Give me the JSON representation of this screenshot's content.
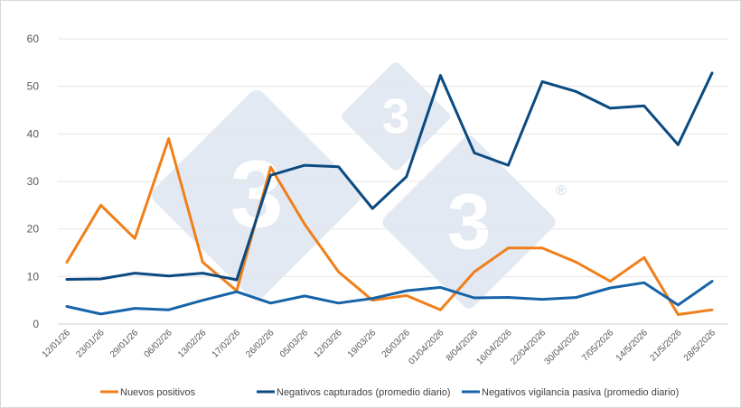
{
  "chart_data": {
    "type": "line",
    "categories": [
      "12/01/26",
      "23/01/26",
      "29/01/26",
      "06/02/26",
      "13/02/26",
      "17/02/26",
      "26/02/26",
      "05/03/26",
      "12/03/26",
      "19/03/26",
      "26/03/26",
      "01/04/2026",
      "8/04/2026",
      "16/04/2026",
      "22/04/2026",
      "30/04/2026",
      "7/05/2026",
      "14/5/2026",
      "21/5/2026",
      "28/5/2026"
    ],
    "ylim": [
      0,
      60
    ],
    "yticks": [
      0,
      10,
      20,
      30,
      40,
      50,
      60
    ],
    "grid": true,
    "legend_position": "bottom",
    "series": [
      {
        "name": "Nuevos positivos",
        "color": "#F07F1A",
        "values": [
          13,
          25,
          18,
          39,
          13,
          7,
          33,
          21,
          11,
          5,
          6,
          3,
          11,
          16,
          16,
          13,
          9,
          14,
          2,
          3
        ]
      },
      {
        "name": "Negativos capturados (promedio diario)",
        "color": "#0B4A80",
        "values": [
          9.4,
          9.5,
          10.7,
          10.1,
          10.7,
          9.3,
          31.3,
          33.4,
          33.1,
          24.3,
          31,
          52.3,
          36,
          33.4,
          51,
          48.9,
          45.4,
          45.9,
          37.7,
          52.8
        ]
      },
      {
        "name": "Negativos vigilancia pasiva (promedio diario)",
        "color": "#1763A8",
        "values": [
          3.7,
          2.1,
          3.3,
          3.0,
          5.0,
          6.8,
          4.4,
          5.9,
          4.4,
          5.4,
          7.0,
          7.7,
          5.5,
          5.6,
          5.2,
          5.6,
          7.6,
          8.7,
          4.0,
          9.0
        ]
      }
    ]
  },
  "watermark": {
    "digit": "3",
    "registered": "®",
    "color": "#2f5fa8"
  }
}
